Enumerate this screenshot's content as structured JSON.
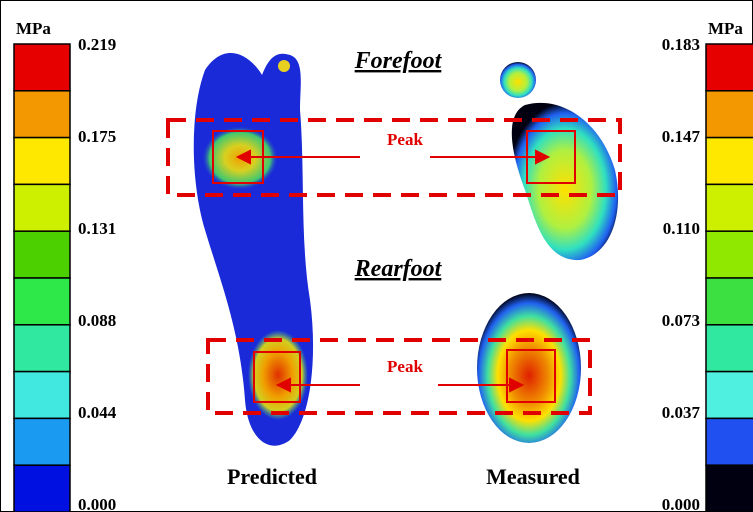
{
  "left_colorbar": {
    "unit": "MPa",
    "ticks": [
      "0.219",
      "0.175",
      "0.131",
      "0.088",
      "0.044",
      "0.000"
    ],
    "colors": [
      "#e60000",
      "#f39800",
      "#ffe800",
      "#ccf000",
      "#4cd000",
      "#2ee84a",
      "#30e8a0",
      "#40e8e0",
      "#1a9af0",
      "#0010e0"
    ]
  },
  "right_colorbar": {
    "unit": "MPa",
    "ticks": [
      "0.183",
      "0.147",
      "0.110",
      "0.073",
      "0.037",
      "0.000"
    ],
    "colors": [
      "#e60000",
      "#f39800",
      "#ffe800",
      "#ccf000",
      "#90e800",
      "#3ce040",
      "#30e8a0",
      "#50f0e0",
      "#2050f0",
      "#000010"
    ]
  },
  "regions": {
    "forefoot": "Forefoot",
    "rearfoot": "Rearfoot"
  },
  "peak_labels": [
    "Peak",
    "Peak"
  ],
  "captions": {
    "predicted": "Predicted",
    "measured": "Measured"
  }
}
